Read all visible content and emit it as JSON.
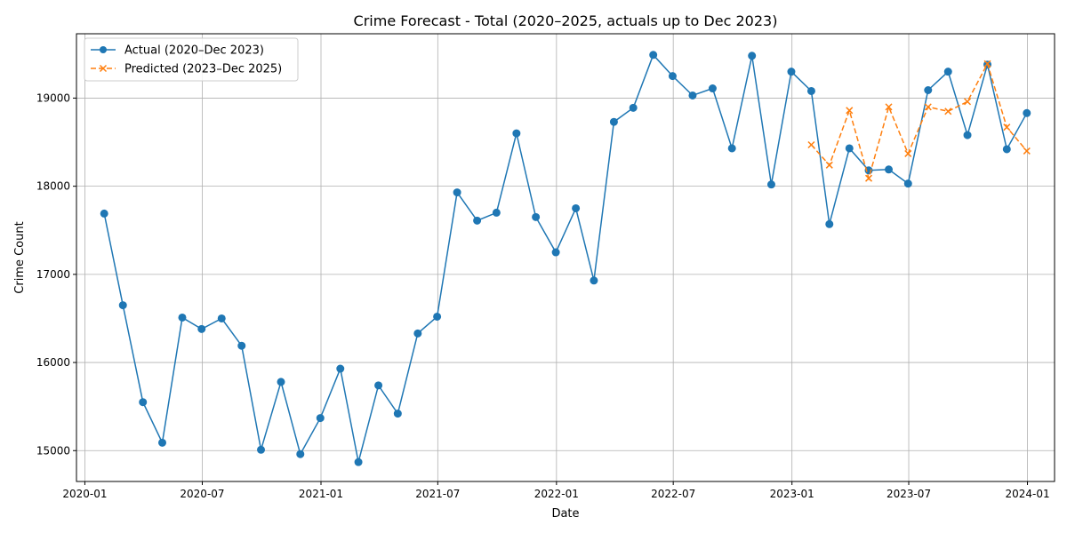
{
  "chart_data": {
    "type": "line",
    "title": "Crime Forecast - Total (2020–2025, actuals up to Dec 2023)",
    "xlabel": "Date",
    "ylabel": "Crime Count",
    "xlim": [
      "2019-12-19",
      "2024-02-12"
    ],
    "ylim": [
      14650,
      19730
    ],
    "x_ticks": [
      {
        "date": "2020-01-01",
        "label": "2020-01"
      },
      {
        "date": "2020-07-01",
        "label": "2020-07"
      },
      {
        "date": "2021-01-01",
        "label": "2021-01"
      },
      {
        "date": "2021-07-01",
        "label": "2021-07"
      },
      {
        "date": "2022-01-01",
        "label": "2022-01"
      },
      {
        "date": "2022-07-01",
        "label": "2022-07"
      },
      {
        "date": "2023-01-01",
        "label": "2023-01"
      },
      {
        "date": "2023-07-01",
        "label": "2023-07"
      },
      {
        "date": "2024-01-01",
        "label": "2024-01"
      }
    ],
    "y_ticks": [
      15000,
      16000,
      17000,
      18000,
      19000
    ],
    "grid": true,
    "legend_position": "top-left",
    "series": [
      {
        "name": "Actual (2020–Dec 2023)",
        "color": "#1f77b4",
        "line_style": "solid",
        "marker": "circle",
        "x": [
          "2020-01-31",
          "2020-02-29",
          "2020-03-31",
          "2020-04-30",
          "2020-05-31",
          "2020-06-30",
          "2020-07-31",
          "2020-08-31",
          "2020-09-30",
          "2020-10-31",
          "2020-11-30",
          "2020-12-31",
          "2021-01-31",
          "2021-02-28",
          "2021-03-31",
          "2021-04-30",
          "2021-05-31",
          "2021-06-30",
          "2021-07-31",
          "2021-08-31",
          "2021-09-30",
          "2021-10-31",
          "2021-11-30",
          "2021-12-31",
          "2022-01-31",
          "2022-02-28",
          "2022-03-31",
          "2022-04-30",
          "2022-05-31",
          "2022-06-30",
          "2022-07-31",
          "2022-08-31",
          "2022-09-30",
          "2022-10-31",
          "2022-11-30",
          "2022-12-31",
          "2023-01-31",
          "2023-02-28",
          "2023-03-31",
          "2023-04-30",
          "2023-05-31",
          "2023-06-30",
          "2023-07-31",
          "2023-08-31",
          "2023-09-30",
          "2023-10-31",
          "2023-11-30",
          "2023-12-31"
        ],
        "values": [
          17690,
          16650,
          15550,
          15090,
          16510,
          16380,
          16500,
          16190,
          15010,
          15780,
          14960,
          15370,
          15930,
          14870,
          15740,
          15420,
          16330,
          16520,
          17930,
          17610,
          17700,
          18600,
          17650,
          17250,
          17750,
          16930,
          18730,
          18890,
          19490,
          19250,
          19030,
          19110,
          18430,
          19480,
          18020,
          19300,
          19080,
          17570,
          18430,
          18180,
          18190,
          18030,
          19090,
          19300,
          18580,
          19380,
          18420,
          18830
        ]
      },
      {
        "name": "Predicted (2023–Dec 2025)",
        "color": "#ff7f0e",
        "line_style": "dashed",
        "marker": "x",
        "x": [
          "2023-01-31",
          "2023-02-28",
          "2023-03-31",
          "2023-04-30",
          "2023-05-31",
          "2023-06-30",
          "2023-07-31",
          "2023-08-31",
          "2023-09-30",
          "2023-10-31",
          "2023-11-30",
          "2023-12-31"
        ],
        "values": [
          18470,
          18240,
          18860,
          18090,
          18900,
          18370,
          18900,
          18850,
          18960,
          19390,
          18670,
          18400
        ]
      }
    ]
  }
}
